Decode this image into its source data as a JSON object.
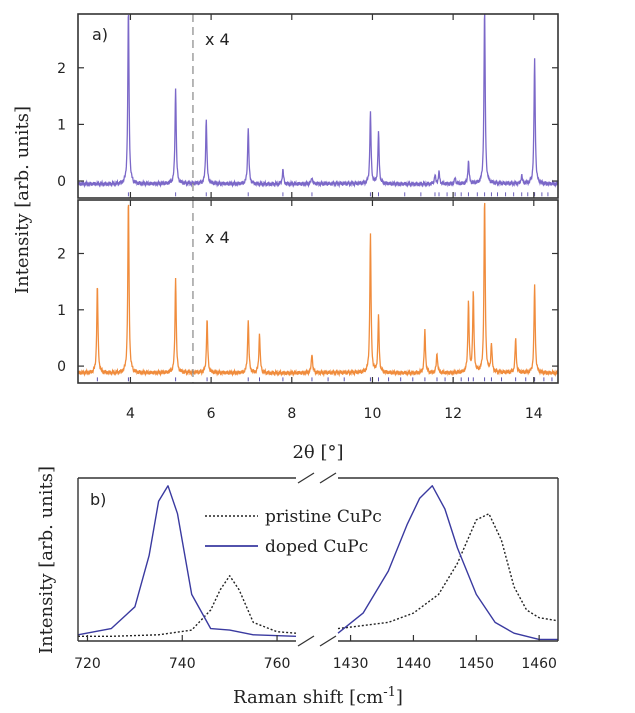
{
  "chart_data": [
    {
      "type": "line",
      "panel": "a)",
      "scale_note": "x 4",
      "scale_note_lower": "x 4",
      "xlabel": "2θ [°]",
      "ylabel": "Intensity [arb. units]",
      "xlim": [
        2.7,
        14.6
      ],
      "x_ticks": [
        4,
        6,
        8,
        10,
        12,
        14
      ],
      "x_tick_labels": [
        "4",
        "6",
        "8",
        "10",
        "12",
        "14"
      ],
      "y_ticks": [
        0,
        1,
        2
      ],
      "y_tick_labels": [
        "0",
        "1",
        "2"
      ],
      "ylim": [
        -0.3,
        2.95
      ],
      "dashed_line_x": 5.55,
      "series": [
        {
          "color": "#7b68c8",
          "baseline": -0.05,
          "peaks": [
            {
              "x": 3.95,
              "y": 3.1
            },
            {
              "x": 5.12,
              "y": 1.7
            },
            {
              "x": 5.88,
              "y": 1.15
            },
            {
              "x": 6.92,
              "y": 1.0
            },
            {
              "x": 7.78,
              "y": 0.25
            },
            {
              "x": 8.5,
              "y": 0.12
            },
            {
              "x": 9.95,
              "y": 1.25
            },
            {
              "x": 10.15,
              "y": 0.9
            },
            {
              "x": 11.55,
              "y": 0.15
            },
            {
              "x": 11.65,
              "y": 0.2
            },
            {
              "x": 12.05,
              "y": 0.1
            },
            {
              "x": 12.38,
              "y": 0.4
            },
            {
              "x": 12.78,
              "y": 3.1
            },
            {
              "x": 13.7,
              "y": 0.15
            },
            {
              "x": 14.02,
              "y": 2.2
            }
          ],
          "ref_ticks": [
            3.95,
            5.12,
            5.88,
            6.92,
            7.78,
            8.5,
            9.95,
            10.15,
            10.8,
            11.2,
            11.55,
            11.65,
            11.85,
            12.05,
            12.2,
            12.38,
            12.6,
            12.78,
            12.95,
            13.1,
            13.3,
            13.5,
            13.7,
            13.85,
            14.02,
            14.2,
            14.35
          ]
        },
        {
          "color": "#f08c3c",
          "baseline": -0.12,
          "peaks": [
            {
              "x": 3.18,
              "y": 1.55
            },
            {
              "x": 3.95,
              "y": 3.1
            },
            {
              "x": 5.12,
              "y": 1.7
            },
            {
              "x": 5.9,
              "y": 0.95
            },
            {
              "x": 6.92,
              "y": 0.95
            },
            {
              "x": 7.2,
              "y": 0.7
            },
            {
              "x": 8.5,
              "y": 0.35
            },
            {
              "x": 9.95,
              "y": 2.45
            },
            {
              "x": 10.15,
              "y": 1.0
            },
            {
              "x": 11.3,
              "y": 0.75
            },
            {
              "x": 11.6,
              "y": 0.35
            },
            {
              "x": 12.38,
              "y": 1.25
            },
            {
              "x": 12.5,
              "y": 1.4
            },
            {
              "x": 12.78,
              "y": 3.1
            },
            {
              "x": 12.95,
              "y": 0.5
            },
            {
              "x": 13.55,
              "y": 0.6
            },
            {
              "x": 14.02,
              "y": 1.55
            }
          ],
          "ref_ticks": [
            3.18,
            3.95,
            5.12,
            5.9,
            6.92,
            7.2,
            7.78,
            8.5,
            8.9,
            9.3,
            9.95,
            10.15,
            10.4,
            10.7,
            11.0,
            11.3,
            11.6,
            11.8,
            12.0,
            12.2,
            12.38,
            12.5,
            12.78,
            12.95,
            13.2,
            13.55,
            13.8,
            14.02,
            14.25,
            14.45
          ]
        }
      ]
    },
    {
      "type": "line",
      "panel": "b)",
      "xlabel": "Raman shift [cm",
      "xlabel_sup": "-1",
      "xlabel_end": "]",
      "ylabel": "Intensity [arb. units]",
      "segments": [
        {
          "xlim": [
            718,
            764
          ],
          "x_ticks": [
            720,
            740,
            760
          ],
          "x_tick_labels": [
            "720",
            "740",
            "760"
          ]
        },
        {
          "xlim": [
            1428,
            1463
          ],
          "x_ticks": [
            1430,
            1440,
            1450,
            1460
          ],
          "x_tick_labels": [
            "1430",
            "1440",
            "1450",
            "1460"
          ]
        }
      ],
      "ylim": [
        0,
        1.05
      ],
      "series": [
        {
          "name": "pristine CuPc",
          "color": "#222222",
          "style": "dotted",
          "x_left": [
            718,
            725,
            735,
            742,
            746,
            748,
            750,
            752,
            755,
            760,
            764
          ],
          "y_left": [
            0.03,
            0.03,
            0.04,
            0.07,
            0.2,
            0.33,
            0.42,
            0.33,
            0.12,
            0.06,
            0.05
          ],
          "x_right": [
            1428,
            1432,
            1436,
            1440,
            1444,
            1447,
            1450,
            1452,
            1454,
            1456,
            1458,
            1460,
            1463
          ],
          "y_right": [
            0.08,
            0.1,
            0.12,
            0.18,
            0.3,
            0.5,
            0.78,
            0.82,
            0.65,
            0.35,
            0.2,
            0.15,
            0.13
          ]
        },
        {
          "name": "doped CuPc",
          "color": "#3a3aa0",
          "style": "solid",
          "x_left": [
            718,
            725,
            730,
            733,
            735,
            737,
            739,
            742,
            746,
            750,
            755,
            764
          ],
          "y_left": [
            0.04,
            0.08,
            0.22,
            0.55,
            0.9,
            1.0,
            0.82,
            0.3,
            0.08,
            0.07,
            0.04,
            0.03
          ],
          "x_right": [
            1428,
            1432,
            1436,
            1439,
            1441,
            1443,
            1445,
            1447,
            1450,
            1453,
            1456,
            1460,
            1463
          ],
          "y_right": [
            0.05,
            0.18,
            0.45,
            0.75,
            0.92,
            1.0,
            0.85,
            0.6,
            0.3,
            0.12,
            0.05,
            0.01,
            0.01
          ]
        }
      ]
    }
  ]
}
